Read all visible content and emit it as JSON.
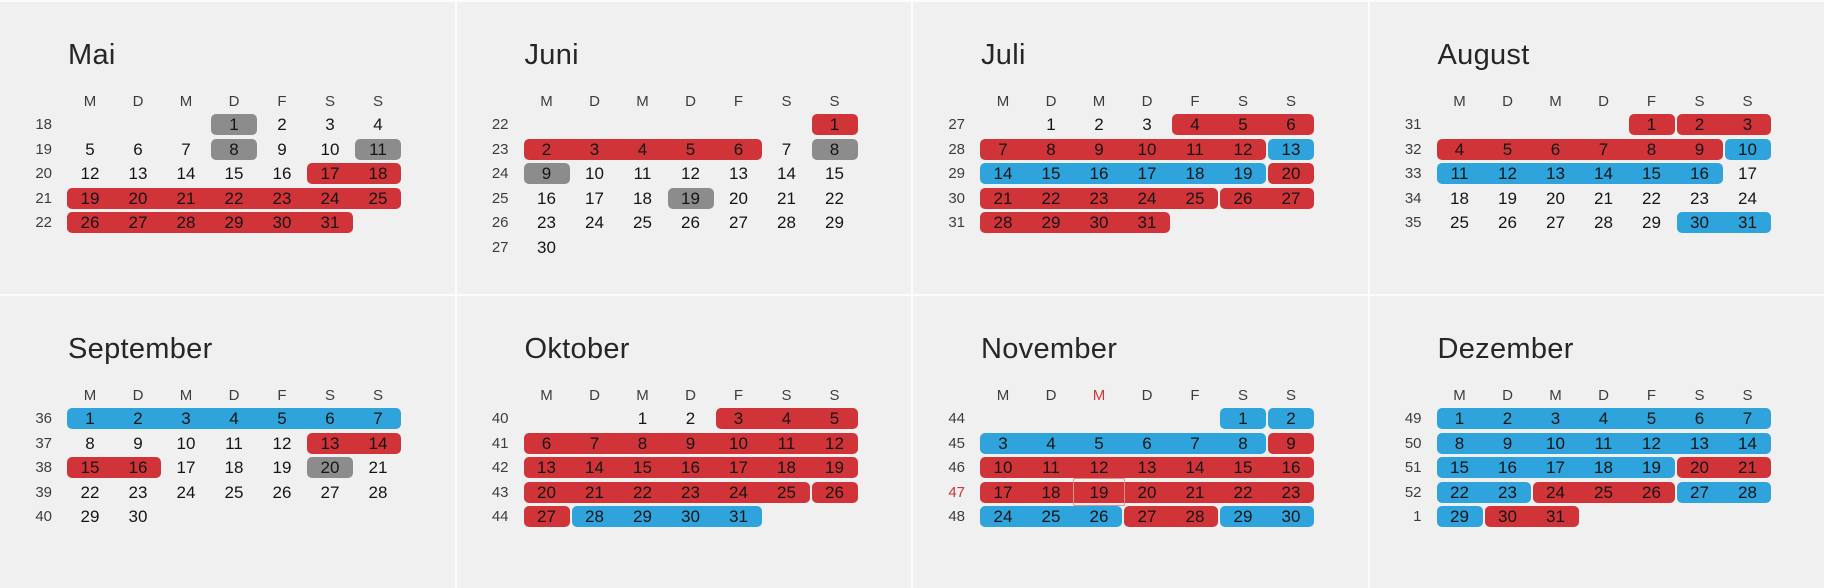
{
  "app": {
    "title": "year-calendar-overview"
  },
  "colors": {
    "background": "#f0f0f0",
    "divider": "#fbfbfb",
    "red": "#d13438",
    "blue": "#2fa3dc",
    "gray": "#8c8c8c",
    "accent_text": "#d13438",
    "today_outline": "#ec8e88"
  },
  "weekday_headers": [
    "M",
    "D",
    "M",
    "D",
    "F",
    "S",
    "S"
  ],
  "months": [
    {
      "name": "Mai",
      "weeks": [
        {
          "num": "18",
          "days": [
            null,
            null,
            null,
            1,
            2,
            3,
            4
          ],
          "segments": [
            {
              "from": 3,
              "to": 3,
              "color": "gray"
            }
          ]
        },
        {
          "num": "19",
          "days": [
            5,
            6,
            7,
            8,
            9,
            10,
            11
          ],
          "segments": [
            {
              "from": 3,
              "to": 3,
              "color": "gray"
            },
            {
              "from": 6,
              "to": 6,
              "color": "gray"
            }
          ]
        },
        {
          "num": "20",
          "days": [
            12,
            13,
            14,
            15,
            16,
            17,
            18
          ],
          "segments": [
            {
              "from": 5,
              "to": 6,
              "color": "red"
            }
          ]
        },
        {
          "num": "21",
          "days": [
            19,
            20,
            21,
            22,
            23,
            24,
            25
          ],
          "segments": [
            {
              "from": 0,
              "to": 6,
              "color": "red"
            }
          ]
        },
        {
          "num": "22",
          "days": [
            26,
            27,
            28,
            29,
            30,
            31,
            null
          ],
          "segments": [
            {
              "from": 0,
              "to": 5,
              "color": "red"
            }
          ]
        }
      ]
    },
    {
      "name": "Juni",
      "weeks": [
        {
          "num": "22",
          "days": [
            null,
            null,
            null,
            null,
            null,
            null,
            1
          ],
          "segments": [
            {
              "from": 6,
              "to": 6,
              "color": "red"
            }
          ]
        },
        {
          "num": "23",
          "days": [
            2,
            3,
            4,
            5,
            6,
            7,
            8
          ],
          "segments": [
            {
              "from": 0,
              "to": 4,
              "color": "red"
            },
            {
              "from": 6,
              "to": 6,
              "color": "gray"
            }
          ]
        },
        {
          "num": "24",
          "days": [
            9,
            10,
            11,
            12,
            13,
            14,
            15
          ],
          "segments": [
            {
              "from": 0,
              "to": 0,
              "color": "gray"
            }
          ]
        },
        {
          "num": "25",
          "days": [
            16,
            17,
            18,
            19,
            20,
            21,
            22
          ],
          "segments": [
            {
              "from": 3,
              "to": 3,
              "color": "gray"
            }
          ]
        },
        {
          "num": "26",
          "days": [
            23,
            24,
            25,
            26,
            27,
            28,
            29
          ],
          "segments": []
        },
        {
          "num": "27",
          "days": [
            30,
            null,
            null,
            null,
            null,
            null,
            null
          ],
          "segments": []
        }
      ]
    },
    {
      "name": "Juli",
      "weeks": [
        {
          "num": "27",
          "days": [
            null,
            1,
            2,
            3,
            4,
            5,
            6
          ],
          "segments": [
            {
              "from": 4,
              "to": 6,
              "color": "red"
            }
          ]
        },
        {
          "num": "28",
          "days": [
            7,
            8,
            9,
            10,
            11,
            12,
            13
          ],
          "segments": [
            {
              "from": 0,
              "to": 5,
              "color": "red"
            },
            {
              "from": 6,
              "to": 6,
              "color": "blue"
            }
          ]
        },
        {
          "num": "29",
          "days": [
            14,
            15,
            16,
            17,
            18,
            19,
            20
          ],
          "segments": [
            {
              "from": 0,
              "to": 5,
              "color": "blue"
            },
            {
              "from": 6,
              "to": 6,
              "color": "red"
            }
          ]
        },
        {
          "num": "30",
          "days": [
            21,
            22,
            23,
            24,
            25,
            26,
            27
          ],
          "segments": [
            {
              "from": 0,
              "to": 4,
              "color": "red"
            },
            {
              "from": 5,
              "to": 6,
              "color": "red"
            }
          ]
        },
        {
          "num": "31",
          "days": [
            28,
            29,
            30,
            31,
            null,
            null,
            null
          ],
          "segments": [
            {
              "from": 0,
              "to": 3,
              "color": "red"
            }
          ]
        }
      ]
    },
    {
      "name": "August",
      "weeks": [
        {
          "num": "31",
          "days": [
            null,
            null,
            null,
            null,
            1,
            2,
            3
          ],
          "segments": [
            {
              "from": 4,
              "to": 4,
              "color": "red"
            },
            {
              "from": 5,
              "to": 6,
              "color": "red"
            }
          ]
        },
        {
          "num": "32",
          "days": [
            4,
            5,
            6,
            7,
            8,
            9,
            10
          ],
          "segments": [
            {
              "from": 0,
              "to": 5,
              "color": "red"
            },
            {
              "from": 6,
              "to": 6,
              "color": "blue"
            }
          ]
        },
        {
          "num": "33",
          "days": [
            11,
            12,
            13,
            14,
            15,
            16,
            17
          ],
          "segments": [
            {
              "from": 0,
              "to": 5,
              "color": "blue"
            }
          ]
        },
        {
          "num": "34",
          "days": [
            18,
            19,
            20,
            21,
            22,
            23,
            24
          ],
          "segments": []
        },
        {
          "num": "35",
          "days": [
            25,
            26,
            27,
            28,
            29,
            30,
            31
          ],
          "segments": [
            {
              "from": 5,
              "to": 6,
              "color": "blue"
            }
          ]
        }
      ]
    },
    {
      "name": "September",
      "weeks": [
        {
          "num": "36",
          "days": [
            1,
            2,
            3,
            4,
            5,
            6,
            7
          ],
          "segments": [
            {
              "from": 0,
              "to": 6,
              "color": "blue"
            }
          ]
        },
        {
          "num": "37",
          "days": [
            8,
            9,
            10,
            11,
            12,
            13,
            14
          ],
          "segments": [
            {
              "from": 5,
              "to": 6,
              "color": "red"
            }
          ]
        },
        {
          "num": "38",
          "days": [
            15,
            16,
            17,
            18,
            19,
            20,
            21
          ],
          "segments": [
            {
              "from": 0,
              "to": 1,
              "color": "red"
            },
            {
              "from": 5,
              "to": 5,
              "color": "gray"
            }
          ]
        },
        {
          "num": "39",
          "days": [
            22,
            23,
            24,
            25,
            26,
            27,
            28
          ],
          "segments": []
        },
        {
          "num": "40",
          "days": [
            29,
            30,
            null,
            null,
            null,
            null,
            null
          ],
          "segments": []
        }
      ]
    },
    {
      "name": "Oktober",
      "weeks": [
        {
          "num": "40",
          "days": [
            null,
            null,
            1,
            2,
            3,
            4,
            5
          ],
          "segments": [
            {
              "from": 4,
              "to": 6,
              "color": "red"
            }
          ]
        },
        {
          "num": "41",
          "days": [
            6,
            7,
            8,
            9,
            10,
            11,
            12
          ],
          "segments": [
            {
              "from": 0,
              "to": 6,
              "color": "red"
            }
          ]
        },
        {
          "num": "42",
          "days": [
            13,
            14,
            15,
            16,
            17,
            18,
            19
          ],
          "segments": [
            {
              "from": 0,
              "to": 6,
              "color": "red"
            }
          ]
        },
        {
          "num": "43",
          "days": [
            20,
            21,
            22,
            23,
            24,
            25,
            26
          ],
          "segments": [
            {
              "from": 0,
              "to": 5,
              "color": "red"
            },
            {
              "from": 6,
              "to": 6,
              "color": "red"
            }
          ]
        },
        {
          "num": "44",
          "days": [
            27,
            28,
            29,
            30,
            31,
            null,
            null
          ],
          "segments": [
            {
              "from": 0,
              "to": 0,
              "color": "red"
            },
            {
              "from": 1,
              "to": 4,
              "color": "blue"
            }
          ]
        }
      ]
    },
    {
      "name": "November",
      "red_header_index": 2,
      "weeks": [
        {
          "num": "44",
          "days": [
            null,
            null,
            null,
            null,
            null,
            1,
            2
          ],
          "segments": [
            {
              "from": 5,
              "to": 5,
              "color": "blue"
            },
            {
              "from": 6,
              "to": 6,
              "color": "blue"
            }
          ]
        },
        {
          "num": "45",
          "days": [
            3,
            4,
            5,
            6,
            7,
            8,
            9
          ],
          "segments": [
            {
              "from": 0,
              "to": 5,
              "color": "blue"
            },
            {
              "from": 6,
              "to": 6,
              "color": "red"
            }
          ]
        },
        {
          "num": "46",
          "days": [
            10,
            11,
            12,
            13,
            14,
            15,
            16
          ],
          "segments": [
            {
              "from": 0,
              "to": 6,
              "color": "red"
            }
          ]
        },
        {
          "num": "47",
          "num_red": true,
          "today_index": 2,
          "days": [
            17,
            18,
            19,
            20,
            21,
            22,
            23
          ],
          "segments": [
            {
              "from": 0,
              "to": 6,
              "color": "red"
            }
          ]
        },
        {
          "num": "48",
          "days": [
            24,
            25,
            26,
            27,
            28,
            29,
            30
          ],
          "segments": [
            {
              "from": 0,
              "to": 2,
              "color": "blue"
            },
            {
              "from": 3,
              "to": 4,
              "color": "red"
            },
            {
              "from": 5,
              "to": 6,
              "color": "blue"
            }
          ]
        }
      ]
    },
    {
      "name": "Dezember",
      "weeks": [
        {
          "num": "49",
          "days": [
            1,
            2,
            3,
            4,
            5,
            6,
            7
          ],
          "segments": [
            {
              "from": 0,
              "to": 6,
              "color": "blue"
            }
          ]
        },
        {
          "num": "50",
          "days": [
            8,
            9,
            10,
            11,
            12,
            13,
            14
          ],
          "segments": [
            {
              "from": 0,
              "to": 6,
              "color": "blue"
            }
          ]
        },
        {
          "num": "51",
          "days": [
            15,
            16,
            17,
            18,
            19,
            20,
            21
          ],
          "segments": [
            {
              "from": 0,
              "to": 4,
              "color": "blue"
            },
            {
              "from": 5,
              "to": 6,
              "color": "red"
            }
          ]
        },
        {
          "num": "52",
          "days": [
            22,
            23,
            24,
            25,
            26,
            27,
            28
          ],
          "segments": [
            {
              "from": 0,
              "to": 1,
              "color": "blue"
            },
            {
              "from": 2,
              "to": 4,
              "color": "red"
            },
            {
              "from": 5,
              "to": 6,
              "color": "blue"
            }
          ]
        },
        {
          "num": "1",
          "days": [
            29,
            30,
            31,
            null,
            null,
            null,
            null
          ],
          "segments": [
            {
              "from": 0,
              "to": 0,
              "color": "blue"
            },
            {
              "from": 1,
              "to": 2,
              "color": "red"
            }
          ]
        }
      ]
    }
  ]
}
